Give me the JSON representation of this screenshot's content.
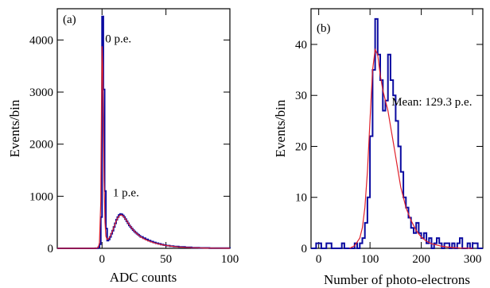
{
  "chart_data": [
    {
      "type": "histogram",
      "panel_label": "(a)",
      "xlabel": "ADC counts",
      "ylabel": "Events/bin",
      "xlim": [
        -35,
        100
      ],
      "ylim": [
        0,
        4600
      ],
      "xticks": [
        0,
        50,
        100
      ],
      "xtick_labels": [
        "0",
        "50",
        "100"
      ],
      "yticks": [
        0,
        1000,
        2000,
        3000,
        4000
      ],
      "ytick_labels": [
        "0",
        "1000",
        "2000",
        "3000",
        "4000"
      ],
      "annotations": [
        {
          "text": "0 p.e.",
          "x": 2.5,
          "y": 3950
        },
        {
          "text": "1 p.e.",
          "x": 8.5,
          "y": 1000
        }
      ],
      "series": [
        {
          "kind": "histogram",
          "bins": [
            [
              -35,
              0
            ],
            [
              -5,
              2
            ],
            [
              -3,
              20
            ],
            [
              -2,
              80
            ],
            [
              -1,
              600
            ],
            [
              0,
              4450
            ],
            [
              1,
              3050
            ],
            [
              2,
              1100
            ],
            [
              3,
              380
            ],
            [
              4,
              150
            ],
            [
              5,
              170
            ],
            [
              6,
              220
            ],
            [
              7,
              280
            ],
            [
              8,
              340
            ],
            [
              9,
              410
            ],
            [
              10,
              480
            ],
            [
              11,
              550
            ],
            [
              12,
              600
            ],
            [
              13,
              640
            ],
            [
              14,
              660
            ],
            [
              15,
              650
            ],
            [
              16,
              630
            ],
            [
              17,
              600
            ],
            [
              18,
              560
            ],
            [
              19,
              520
            ],
            [
              20,
              480
            ],
            [
              21,
              440
            ],
            [
              22,
              410
            ],
            [
              23,
              380
            ],
            [
              24,
              350
            ],
            [
              25,
              325
            ],
            [
              26,
              300
            ],
            [
              27,
              280
            ],
            [
              28,
              260
            ],
            [
              29,
              240
            ],
            [
              30,
              220
            ],
            [
              32,
              195
            ],
            [
              34,
              170
            ],
            [
              36,
              150
            ],
            [
              38,
              130
            ],
            [
              40,
              112
            ],
            [
              42,
              98
            ],
            [
              44,
              85
            ],
            [
              46,
              72
            ],
            [
              48,
              62
            ],
            [
              50,
              52
            ],
            [
              53,
              42
            ],
            [
              56,
              34
            ],
            [
              60,
              26
            ],
            [
              65,
              18
            ],
            [
              70,
              12
            ],
            [
              76,
              8
            ],
            [
              84,
              5
            ],
            [
              92,
              3
            ],
            [
              100,
              0
            ]
          ]
        },
        {
          "kind": "fit",
          "points": [
            [
              -35,
              0
            ],
            [
              -5,
              0
            ],
            [
              -3,
              15
            ],
            [
              -2,
              100
            ],
            [
              -1,
              900
            ],
            [
              -0.4,
              2800
            ],
            [
              0,
              3880
            ],
            [
              0.5,
              3500
            ],
            [
              1,
              2500
            ],
            [
              1.6,
              1300
            ],
            [
              2.3,
              500
            ],
            [
              3,
              230
            ],
            [
              4,
              170
            ],
            [
              5,
              180
            ],
            [
              6,
              215
            ],
            [
              7,
              265
            ],
            [
              8,
              320
            ],
            [
              9,
              385
            ],
            [
              10,
              450
            ],
            [
              11,
              515
            ],
            [
              12,
              570
            ],
            [
              13,
              610
            ],
            [
              14,
              635
            ],
            [
              15,
              640
            ],
            [
              16,
              630
            ],
            [
              17,
              605
            ],
            [
              18,
              575
            ],
            [
              19,
              540
            ],
            [
              20,
              500
            ],
            [
              22,
              430
            ],
            [
              24,
              365
            ],
            [
              26,
              310
            ],
            [
              28,
              265
            ],
            [
              30,
              225
            ],
            [
              33,
              180
            ],
            [
              36,
              145
            ],
            [
              40,
              110
            ],
            [
              45,
              78
            ],
            [
              50,
              55
            ],
            [
              55,
              38
            ],
            [
              60,
              26
            ],
            [
              70,
              12
            ],
            [
              80,
              6
            ],
            [
              90,
              3
            ],
            [
              100,
              1
            ]
          ]
        }
      ]
    },
    {
      "type": "histogram",
      "panel_label": "(b)",
      "xlabel": "Number of photo-electrons",
      "ylabel": "Events/bin",
      "xlim": [
        -15,
        320
      ],
      "ylim": [
        0,
        47
      ],
      "xticks": [
        0,
        100,
        200,
        300
      ],
      "xtick_labels": [
        "0",
        "100",
        "200",
        "300"
      ],
      "yticks": [
        0,
        10,
        20,
        30,
        40
      ],
      "ytick_labels": [
        "0",
        "10",
        "20",
        "30",
        "40"
      ],
      "annotations": [
        {
          "text": "Mean: 129.3 p.e.",
          "x": 142,
          "y": 28
        }
      ],
      "series": [
        {
          "kind": "histogram",
          "bins": [
            [
              -15,
              0
            ],
            [
              -5,
              1
            ],
            [
              5,
              0
            ],
            [
              15,
              1
            ],
            [
              25,
              0
            ],
            [
              45,
              1
            ],
            [
              50,
              0
            ],
            [
              70,
              1
            ],
            [
              75,
              0
            ],
            [
              80,
              1
            ],
            [
              85,
              2
            ],
            [
              90,
              5
            ],
            [
              95,
              10
            ],
            [
              100,
              22
            ],
            [
              105,
              35
            ],
            [
              110,
              45
            ],
            [
              115,
              38
            ],
            [
              120,
              33
            ],
            [
              125,
              27
            ],
            [
              130,
              29
            ],
            [
              135,
              38
            ],
            [
              140,
              33
            ],
            [
              145,
              30
            ],
            [
              150,
              25
            ],
            [
              155,
              20
            ],
            [
              160,
              15
            ],
            [
              165,
              10
            ],
            [
              170,
              8
            ],
            [
              175,
              6
            ],
            [
              180,
              4
            ],
            [
              185,
              3
            ],
            [
              190,
              5
            ],
            [
              195,
              3
            ],
            [
              200,
              2
            ],
            [
              205,
              3
            ],
            [
              210,
              1
            ],
            [
              215,
              2
            ],
            [
              220,
              0
            ],
            [
              225,
              1
            ],
            [
              230,
              2
            ],
            [
              235,
              1
            ],
            [
              240,
              0
            ],
            [
              245,
              1
            ],
            [
              250,
              1
            ],
            [
              255,
              0
            ],
            [
              260,
              1
            ],
            [
              265,
              0
            ],
            [
              270,
              1
            ],
            [
              275,
              2
            ],
            [
              280,
              0
            ],
            [
              290,
              1
            ],
            [
              295,
              0
            ],
            [
              300,
              1
            ],
            [
              305,
              1
            ],
            [
              310,
              0
            ]
          ]
        },
        {
          "kind": "fit",
          "points": [
            [
              60,
              0
            ],
            [
              70,
              0.5
            ],
            [
              80,
              2
            ],
            [
              85,
              4
            ],
            [
              90,
              8
            ],
            [
              95,
              15
            ],
            [
              100,
              25
            ],
            [
              105,
              35
            ],
            [
              110,
              39
            ],
            [
              115,
              38
            ],
            [
              120,
              34
            ],
            [
              125,
              31
            ],
            [
              130,
              29
            ],
            [
              135,
              27
            ],
            [
              140,
              24
            ],
            [
              145,
              21
            ],
            [
              150,
              18
            ],
            [
              155,
              15
            ],
            [
              160,
              12
            ],
            [
              165,
              10
            ],
            [
              170,
              8
            ],
            [
              180,
              5.5
            ],
            [
              190,
              3.5
            ],
            [
              200,
              2.2
            ],
            [
              210,
              1.4
            ],
            [
              220,
              0.9
            ],
            [
              240,
              0.4
            ],
            [
              260,
              0.15
            ],
            [
              280,
              0.05
            ],
            [
              300,
              0
            ]
          ]
        }
      ]
    }
  ]
}
